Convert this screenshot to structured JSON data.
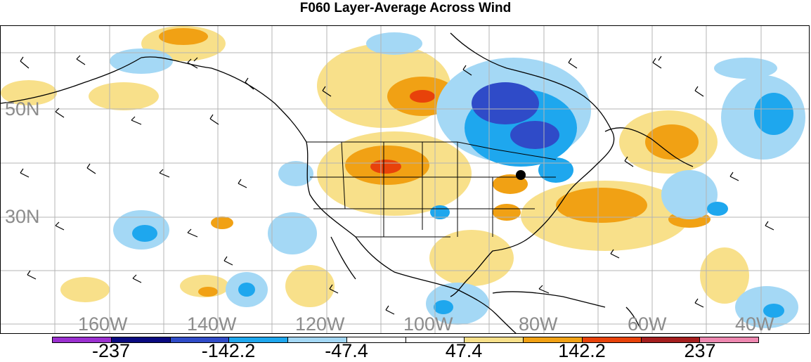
{
  "title": "F060 Layer-Average Across Wind",
  "lat_labels": [
    "50N",
    "30N"
  ],
  "lon_labels": [
    "160W",
    "140W",
    "120W",
    "100W",
    "80W",
    "60W",
    "40W"
  ],
  "colorbar": {
    "tick_labels": [
      "-237",
      "-142.2",
      "-47.4",
      "47.4",
      "142.2",
      "237"
    ],
    "colors": [
      "#9b30d0",
      "#0a0a80",
      "#2f4bc8",
      "#1ea7ee",
      "#a4d8f5",
      "#ffffff",
      "#ffffff",
      "#f8e08a",
      "#f1a114",
      "#e8420a",
      "#a51e1e",
      "#ee88b0"
    ]
  },
  "map": {
    "field_colors": {
      "pale_yellow": "#f8e08a",
      "orange": "#f1a114",
      "red_orange": "#e8420a",
      "light_blue": "#a4d8f5",
      "cyan_blue": "#1ea7ee",
      "royal_blue": "#2f4bc8"
    },
    "station_marker": "black-dot"
  }
}
